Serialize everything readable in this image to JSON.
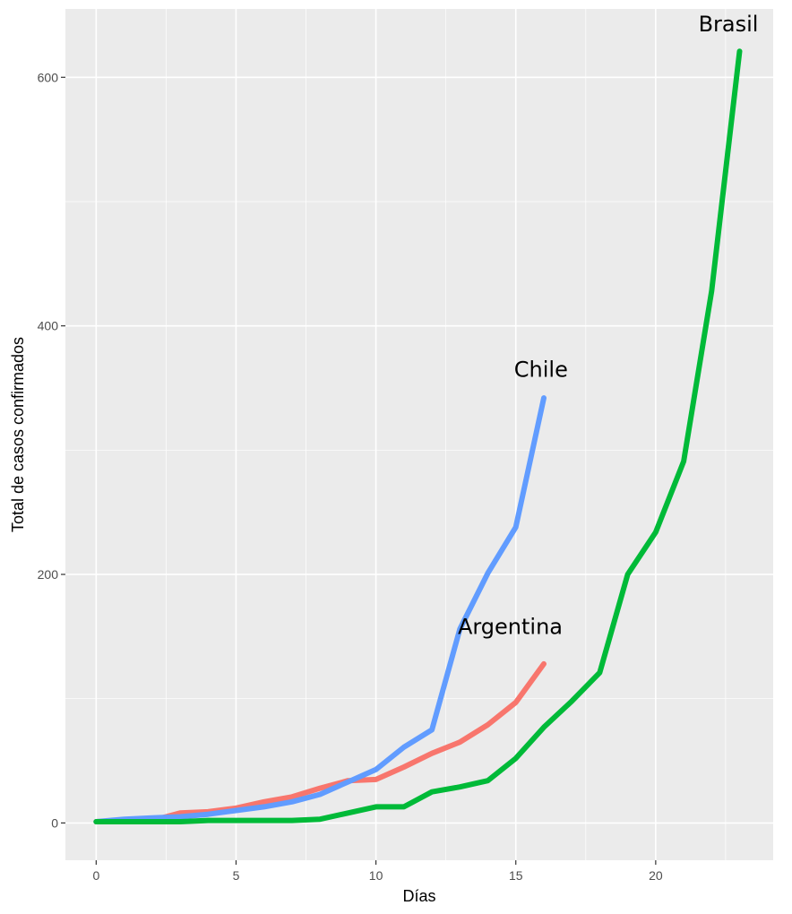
{
  "chart_data": {
    "type": "line",
    "title": "",
    "xlabel": "Días",
    "ylabel": "Total de casos confirmados",
    "xlim": [
      -1.1,
      24.2
    ],
    "ylim": [
      -30,
      655
    ],
    "grid": true,
    "x_ticks": [
      0,
      5,
      10,
      15,
      20
    ],
    "y_ticks": [
      0,
      200,
      400,
      600
    ],
    "legend": "none",
    "series": [
      {
        "name": "Argentina",
        "color": "#F8766D",
        "x": [
          0,
          1,
          2,
          3,
          4,
          5,
          6,
          7,
          8,
          9,
          10,
          11,
          12,
          13,
          14,
          15,
          16
        ],
        "y": [
          1,
          2,
          2,
          8,
          9,
          12,
          17,
          21,
          28,
          34,
          35,
          45,
          56,
          65,
          79,
          97,
          128
        ],
        "label_at": [
          14.8,
          152
        ]
      },
      {
        "name": "Chile",
        "color": "#619CFF",
        "x": [
          0,
          1,
          2,
          3,
          4,
          5,
          6,
          7,
          8,
          9,
          10,
          11,
          12,
          13,
          14,
          15,
          16
        ],
        "y": [
          1,
          3,
          4,
          5,
          7,
          10,
          13,
          17,
          23,
          33,
          43,
          61,
          75,
          156,
          201,
          238,
          342
        ],
        "label_at": [
          15.9,
          359
        ]
      },
      {
        "name": "Brasil",
        "color": "#00BA38",
        "x": [
          0,
          1,
          2,
          3,
          4,
          5,
          6,
          7,
          8,
          9,
          10,
          11,
          12,
          13,
          14,
          15,
          16,
          17,
          18,
          19,
          20,
          21,
          22,
          23
        ],
        "y": [
          1,
          1,
          1,
          1,
          2,
          2,
          2,
          2,
          3,
          8,
          13,
          13,
          25,
          29,
          34,
          52,
          77,
          98,
          121,
          200,
          234,
          291,
          428,
          621
        ],
        "label_at": [
          22.6,
          637
        ]
      }
    ]
  }
}
